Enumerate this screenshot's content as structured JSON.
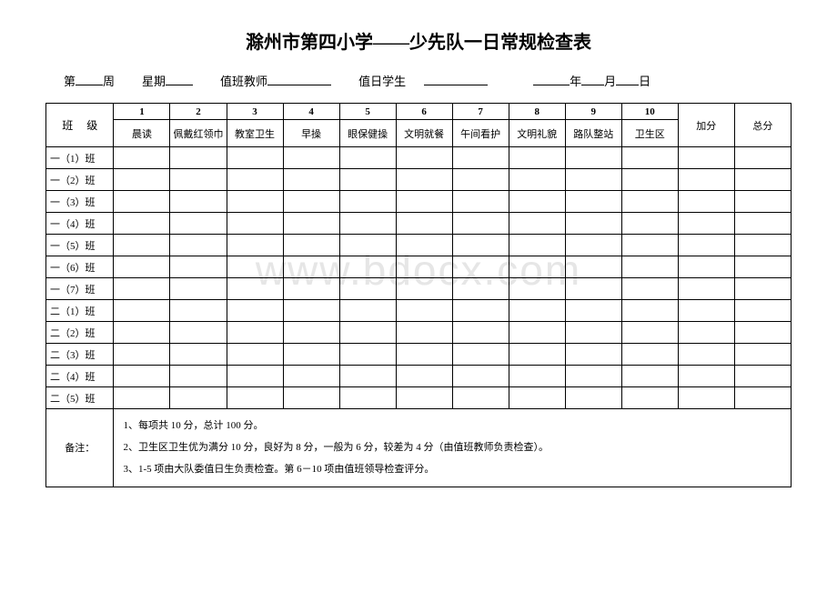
{
  "title": "滁州市第四小学——少先队一日常规检查表",
  "watermark": "www.bdocx.com",
  "info": {
    "week_prefix": "第",
    "week_suffix": "周",
    "weekday_label": "星期",
    "duty_teacher_label": "值班教师",
    "duty_student_label": "值日学生",
    "year_suffix": "年",
    "month_suffix": "月",
    "day_suffix": "日"
  },
  "table": {
    "class_header": "班 级",
    "col_nums": [
      "1",
      "2",
      "3",
      "4",
      "5",
      "6",
      "7",
      "8",
      "9",
      "10"
    ],
    "col_names": [
      "晨读",
      "佩戴红领巾",
      "教室卫生",
      "早操",
      "眼保健操",
      "文明就餐",
      "午间看护",
      "文明礼貌",
      "路队整站",
      "卫生区"
    ],
    "bonus": "加分",
    "total": "总分",
    "classes": [
      "一（1）班",
      "一（2）班",
      "一（3）班",
      "一（4）班",
      "一（5）班",
      "一（6）班",
      "一（7）班",
      "二（1）班",
      "二（2）班",
      "二（3）班",
      "二（4）班",
      "二（5）班"
    ],
    "notes_label": "备注：",
    "notes": [
      "1、每项共 10 分，总计 100 分。",
      "2、卫生区卫生优为满分 10 分，良好为 8 分，一般为 6 分，较差为 4 分（由值班教师负责检查）。",
      "3、1-5 项由大队委值日生负责检查。第 6－10 项由值班领导检查评分。"
    ]
  },
  "style": {
    "underline_widths": {
      "week": 30,
      "weekday": 30,
      "teacher": 70,
      "student": 70,
      "year": 40,
      "month": 25,
      "day": 25
    }
  }
}
